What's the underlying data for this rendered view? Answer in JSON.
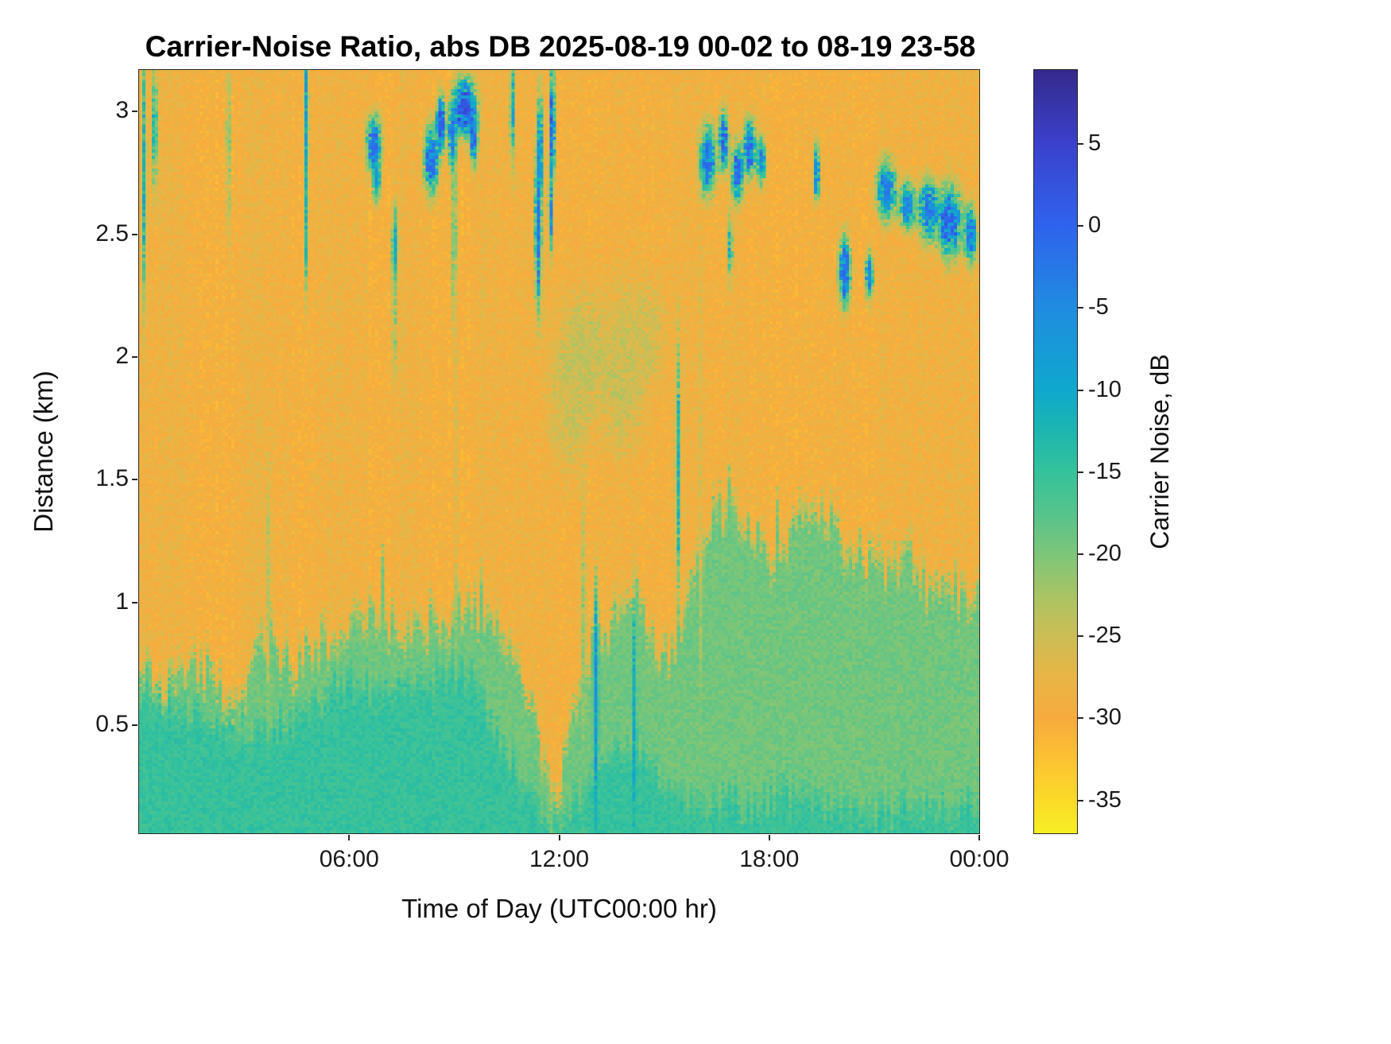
{
  "figure": {
    "background": "#ffffff",
    "text_color": "#1a1a1a"
  },
  "chart_data": {
    "type": "heatmap",
    "title": "Carrier-Noise Ratio, abs DB 2025-08-19 00-02 to 08-19 23-58",
    "xlabel": "Time of Day (UTC00:00 hr)",
    "ylabel": "Distance (km)",
    "colorbar_label": "Carrier Noise, dB",
    "x_range_hours": [
      0,
      24
    ],
    "y_range_km": [
      0.06,
      3.17
    ],
    "x_ticks": [
      {
        "hour": 6,
        "label": "06:00"
      },
      {
        "hour": 12,
        "label": "12:00"
      },
      {
        "hour": 18,
        "label": "18:00"
      },
      {
        "hour": 24,
        "label": "00:00"
      }
    ],
    "y_ticks": [
      {
        "km": 3,
        "label": "3"
      },
      {
        "km": 2.5,
        "label": "2.5"
      },
      {
        "km": 2,
        "label": "2"
      },
      {
        "km": 1.5,
        "label": "1.5"
      },
      {
        "km": 1,
        "label": "1"
      },
      {
        "km": 0.5,
        "label": "0.5"
      }
    ],
    "colorbar_ticks": [
      {
        "value": 5,
        "label": "5"
      },
      {
        "value": 0,
        "label": "0"
      },
      {
        "value": -5,
        "label": "-5"
      },
      {
        "value": -10,
        "label": "-10"
      },
      {
        "value": -15,
        "label": "-15"
      },
      {
        "value": -20,
        "label": "-20"
      },
      {
        "value": -25,
        "label": "-25"
      },
      {
        "value": -30,
        "label": "-30"
      },
      {
        "value": -35,
        "label": "-35"
      }
    ],
    "value_range_db": [
      -37,
      9.5
    ],
    "colormap": "parula reversed (high values dark blue, low values yellow)",
    "colormap_stops": [
      [
        -37,
        "#f6ef25"
      ],
      [
        -35,
        "#fbda28"
      ],
      [
        -32.5,
        "#fcc233"
      ],
      [
        -30,
        "#f7ab3d"
      ],
      [
        -27.5,
        "#e9b545"
      ],
      [
        -25,
        "#ccbd55"
      ],
      [
        -22.5,
        "#a9c464"
      ],
      [
        -20,
        "#7cc678"
      ],
      [
        -17.5,
        "#55c48c"
      ],
      [
        -15,
        "#35c29b"
      ],
      [
        -12.5,
        "#1cb6b0"
      ],
      [
        -10,
        "#0fa8cd"
      ],
      [
        -5,
        "#1f8ce0"
      ],
      [
        0,
        "#2f63ed"
      ],
      [
        5,
        "#3a41cc"
      ],
      [
        9.5,
        "#352a8c"
      ]
    ],
    "field": {
      "background_db": -29,
      "speckle_db": 1.9,
      "column_stripe_db": 0.6,
      "grid_cols": 264,
      "grid_rows": 240,
      "boundary_step_hours": 0.5,
      "green_layer": {
        "value_db": -18.8,
        "edge_km": 0.12,
        "top_km": [
          0.78,
          0.74,
          0.72,
          0.76,
          0.78,
          0.73,
          0.76,
          0.86,
          0.8,
          0.83,
          0.88,
          0.93,
          0.96,
          1.0,
          0.98,
          0.96,
          1.0,
          0.98,
          1.03,
          1.05,
          0.98,
          0.88,
          0.72,
          0.45,
          0.32,
          0.7,
          0.95,
          1.0,
          1.05,
          1.0,
          0.86,
          0.96,
          1.26,
          1.45,
          1.4,
          1.32,
          1.28,
          1.33,
          1.48,
          1.38,
          1.32,
          1.26,
          1.22,
          1.17,
          1.28,
          1.12,
          1.22,
          1.08,
          1.12
        ]
      },
      "teal_layer": {
        "value_db": -14.6,
        "edge_km": 0.12,
        "top_km": [
          0.72,
          0.68,
          0.62,
          0.6,
          0.58,
          0.55,
          0.52,
          0.55,
          0.58,
          0.61,
          0.66,
          0.7,
          0.74,
          0.72,
          0.68,
          0.72,
          0.76,
          0.73,
          0.8,
          0.78,
          0.6,
          0.45,
          0.3,
          0.18,
          0.12,
          0.25,
          0.4,
          0.45,
          0.48,
          0.42,
          0.3,
          0.25,
          0.22,
          0.25,
          0.25,
          0.22,
          0.25,
          0.28,
          0.25,
          0.22,
          0.25,
          0.22,
          0.2,
          0.22,
          0.25,
          0.22,
          0.2,
          0.22,
          0.25
        ]
      },
      "blobs": [
        [
          0.15,
          2.75,
          0.05,
          0.45,
          -11
        ],
        [
          0.45,
          2.95,
          0.05,
          0.25,
          -9
        ],
        [
          2.55,
          2.85,
          0.05,
          0.35,
          -18
        ],
        [
          3.7,
          1.1,
          0.06,
          0.45,
          -23.5
        ],
        [
          4.78,
          2.95,
          0.06,
          0.3,
          -7
        ],
        [
          4.78,
          2.55,
          0.05,
          0.25,
          -13
        ],
        [
          6.7,
          2.87,
          0.18,
          0.1,
          -1
        ],
        [
          6.78,
          2.72,
          0.1,
          0.08,
          -6
        ],
        [
          7.3,
          2.45,
          0.07,
          0.14,
          -7
        ],
        [
          7.28,
          2.15,
          0.05,
          0.25,
          -20
        ],
        [
          8.35,
          2.8,
          0.18,
          0.12,
          -1
        ],
        [
          8.62,
          2.95,
          0.12,
          0.1,
          1
        ],
        [
          8.95,
          2.9,
          0.1,
          0.12,
          0
        ],
        [
          9.3,
          3.02,
          0.28,
          0.1,
          3
        ],
        [
          9.55,
          2.9,
          0.1,
          0.1,
          0
        ],
        [
          9.0,
          2.5,
          0.05,
          0.35,
          -14
        ],
        [
          9.05,
          1.6,
          0.05,
          0.6,
          -26
        ],
        [
          10.65,
          3.0,
          0.05,
          0.2,
          -8
        ],
        [
          11.4,
          2.55,
          0.08,
          0.3,
          -2
        ],
        [
          11.45,
          2.85,
          0.07,
          0.2,
          -5
        ],
        [
          11.8,
          2.95,
          0.07,
          0.2,
          1
        ],
        [
          11.75,
          2.6,
          0.05,
          0.15,
          -4
        ],
        [
          12.3,
          1.8,
          0.5,
          0.25,
          -25
        ],
        [
          12.7,
          2.0,
          0.7,
          0.25,
          -24.5
        ],
        [
          13.8,
          1.95,
          0.6,
          0.3,
          -24.5
        ],
        [
          14.5,
          2.1,
          0.5,
          0.2,
          -25.5
        ],
        [
          12.7,
          0.85,
          0.07,
          0.5,
          -21
        ],
        [
          13.05,
          0.6,
          0.06,
          0.4,
          -6
        ],
        [
          14.15,
          0.55,
          0.05,
          0.4,
          -10
        ],
        [
          15.4,
          1.55,
          0.06,
          0.45,
          -12
        ],
        [
          16.05,
          1.75,
          0.05,
          0.8,
          -26
        ],
        [
          16.25,
          2.8,
          0.2,
          0.12,
          -2
        ],
        [
          16.7,
          2.88,
          0.12,
          0.1,
          0
        ],
        [
          16.9,
          2.45,
          0.05,
          0.12,
          -9
        ],
        [
          17.1,
          2.75,
          0.15,
          0.1,
          -1
        ],
        [
          17.45,
          2.85,
          0.15,
          0.1,
          0
        ],
        [
          17.78,
          2.8,
          0.1,
          0.08,
          -3
        ],
        [
          19.35,
          2.75,
          0.08,
          0.1,
          -5
        ],
        [
          20.15,
          2.35,
          0.15,
          0.12,
          -2
        ],
        [
          20.85,
          2.33,
          0.1,
          0.08,
          -4
        ],
        [
          21.35,
          2.68,
          0.25,
          0.1,
          -3
        ],
        [
          21.95,
          2.62,
          0.2,
          0.08,
          -4
        ],
        [
          22.55,
          2.6,
          0.25,
          0.1,
          -2
        ],
        [
          23.15,
          2.55,
          0.3,
          0.12,
          0
        ],
        [
          23.75,
          2.5,
          0.15,
          0.1,
          -3
        ]
      ]
    }
  }
}
